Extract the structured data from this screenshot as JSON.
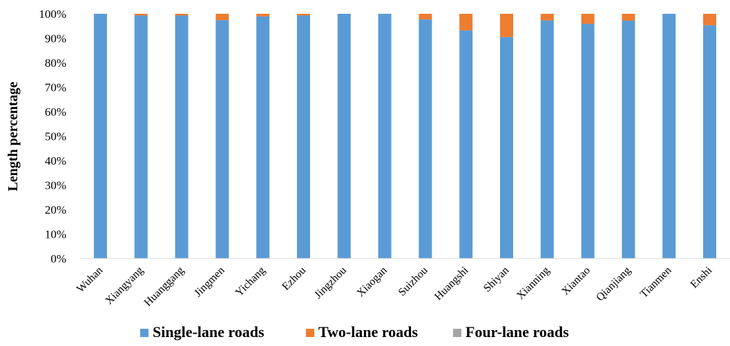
{
  "chart_data": {
    "type": "bar",
    "stacked": true,
    "percent": true,
    "categories": [
      "Wuhan",
      "Xiangyang",
      "Huanggang",
      "Jingmen",
      "Yichang",
      "Ezhou",
      "Jingzhou",
      "Xiaogan",
      "Suizhou",
      "Huangshi",
      "Shiyan",
      "Xianning",
      "Xiantao",
      "Qianjiang",
      "Tianmen",
      "Enshi"
    ],
    "series": [
      {
        "name": "Single-lane roads",
        "color": "#5b9bd5",
        "values": [
          100,
          99.3,
          99.3,
          97.4,
          98.9,
          99.3,
          100,
          100,
          97.7,
          93.2,
          90.5,
          97.3,
          95.9,
          97.2,
          100,
          95.3
        ]
      },
      {
        "name": "Two-lane roads",
        "color": "#ed7d31",
        "values": [
          0,
          0.7,
          0.7,
          2.6,
          1.1,
          0.7,
          0,
          0,
          2.3,
          6.8,
          9.5,
          2.7,
          4.1,
          2.8,
          0,
          4.7
        ]
      },
      {
        "name": "Four-lane roads",
        "color": "#a5a5a5",
        "values": [
          0,
          0,
          0,
          0,
          0,
          0,
          0,
          0,
          0,
          0,
          0,
          0,
          0,
          0,
          0,
          0
        ]
      }
    ],
    "ylabel": "Length percentage",
    "xlabel": "",
    "ylim": [
      0,
      100
    ],
    "yticks": [
      "0%",
      "10%",
      "20%",
      "30%",
      "40%",
      "50%",
      "60%",
      "70%",
      "80%",
      "90%",
      "100%"
    ],
    "grid": false,
    "legend_position": "bottom"
  }
}
